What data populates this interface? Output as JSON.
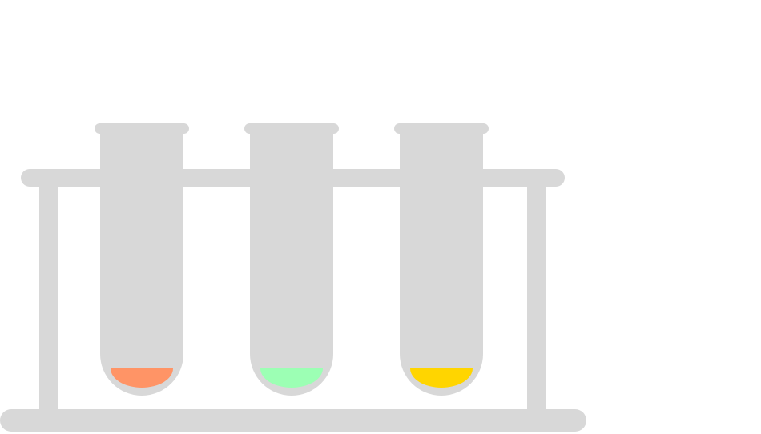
{
  "colors": {
    "background": "#ffffff",
    "rack": "#d8d8d8",
    "tube": "#d8d8d8"
  },
  "tubes": [
    {
      "liquid_color": "#ff9466"
    },
    {
      "liquid_color": "#9cffb4"
    },
    {
      "liquid_color": "#ffd500"
    }
  ]
}
